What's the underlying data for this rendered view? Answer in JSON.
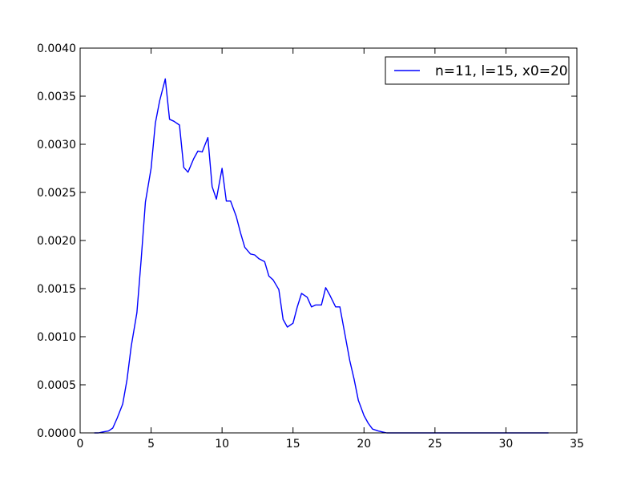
{
  "chart_data": {
    "type": "line",
    "title": "",
    "xlabel": "",
    "ylabel": "",
    "xlim": [
      0,
      35
    ],
    "ylim": [
      0,
      0.004
    ],
    "x_ticks": [
      0,
      5,
      10,
      15,
      20,
      25,
      30,
      35
    ],
    "y_ticks": [
      0.0,
      0.0005,
      0.001,
      0.0015,
      0.002,
      0.0025,
      0.003,
      0.0035,
      0.004
    ],
    "x_tick_labels": [
      "0",
      "5",
      "10",
      "15",
      "20",
      "25",
      "30",
      "35"
    ],
    "y_tick_labels": [
      "0.0000",
      "0.0005",
      "0.0010",
      "0.0015",
      "0.0020",
      "0.0025",
      "0.0030",
      "0.0035",
      "0.0040"
    ],
    "grid": false,
    "legend_position": "top-right",
    "series": [
      {
        "name": "n=11, l=15, x0=20",
        "color": "#0000ff",
        "x": [
          1.0,
          1.3,
          1.6,
          2.0,
          2.3,
          2.6,
          3.0,
          3.3,
          3.6,
          4.0,
          4.3,
          4.6,
          5.0,
          5.3,
          5.6,
          6.0,
          6.3,
          6.6,
          7.0,
          7.3,
          7.6,
          8.0,
          8.3,
          8.6,
          9.0,
          9.3,
          9.6,
          10.0,
          10.3,
          10.6,
          11.0,
          11.3,
          11.6,
          12.0,
          12.3,
          12.6,
          13.0,
          13.3,
          13.6,
          14.0,
          14.3,
          14.6,
          15.0,
          15.3,
          15.6,
          16.0,
          16.3,
          16.6,
          17.0,
          17.3,
          17.6,
          18.0,
          18.3,
          18.6,
          19.0,
          19.3,
          19.6,
          20.0,
          20.3,
          20.6,
          21.0,
          21.3,
          21.6,
          22.0,
          23.0,
          25.0,
          27.0,
          29.0,
          31.0,
          33.0
        ],
        "y": [
          0.0,
          0.0,
          1e-05,
          2e-05,
          5e-05,
          0.00015,
          0.0003,
          0.00055,
          0.0009,
          0.00125,
          0.0018,
          0.0024,
          0.00275,
          0.00322,
          0.00345,
          0.00368,
          0.00326,
          0.00324,
          0.0032,
          0.00276,
          0.00271,
          0.00285,
          0.00293,
          0.00292,
          0.00307,
          0.00256,
          0.00243,
          0.00275,
          0.00241,
          0.00241,
          0.00225,
          0.00208,
          0.00193,
          0.00186,
          0.00185,
          0.00181,
          0.00178,
          0.00163,
          0.00159,
          0.00149,
          0.00118,
          0.0011,
          0.00114,
          0.00131,
          0.00145,
          0.00141,
          0.00131,
          0.00133,
          0.00133,
          0.00151,
          0.00143,
          0.00131,
          0.00131,
          0.00107,
          0.00075,
          0.00056,
          0.00034,
          0.00018,
          0.0001,
          4e-05,
          2e-05,
          1e-05,
          0.0,
          0.0,
          0.0,
          0.0,
          0.0,
          0.0,
          0.0,
          0.0
        ]
      }
    ]
  }
}
